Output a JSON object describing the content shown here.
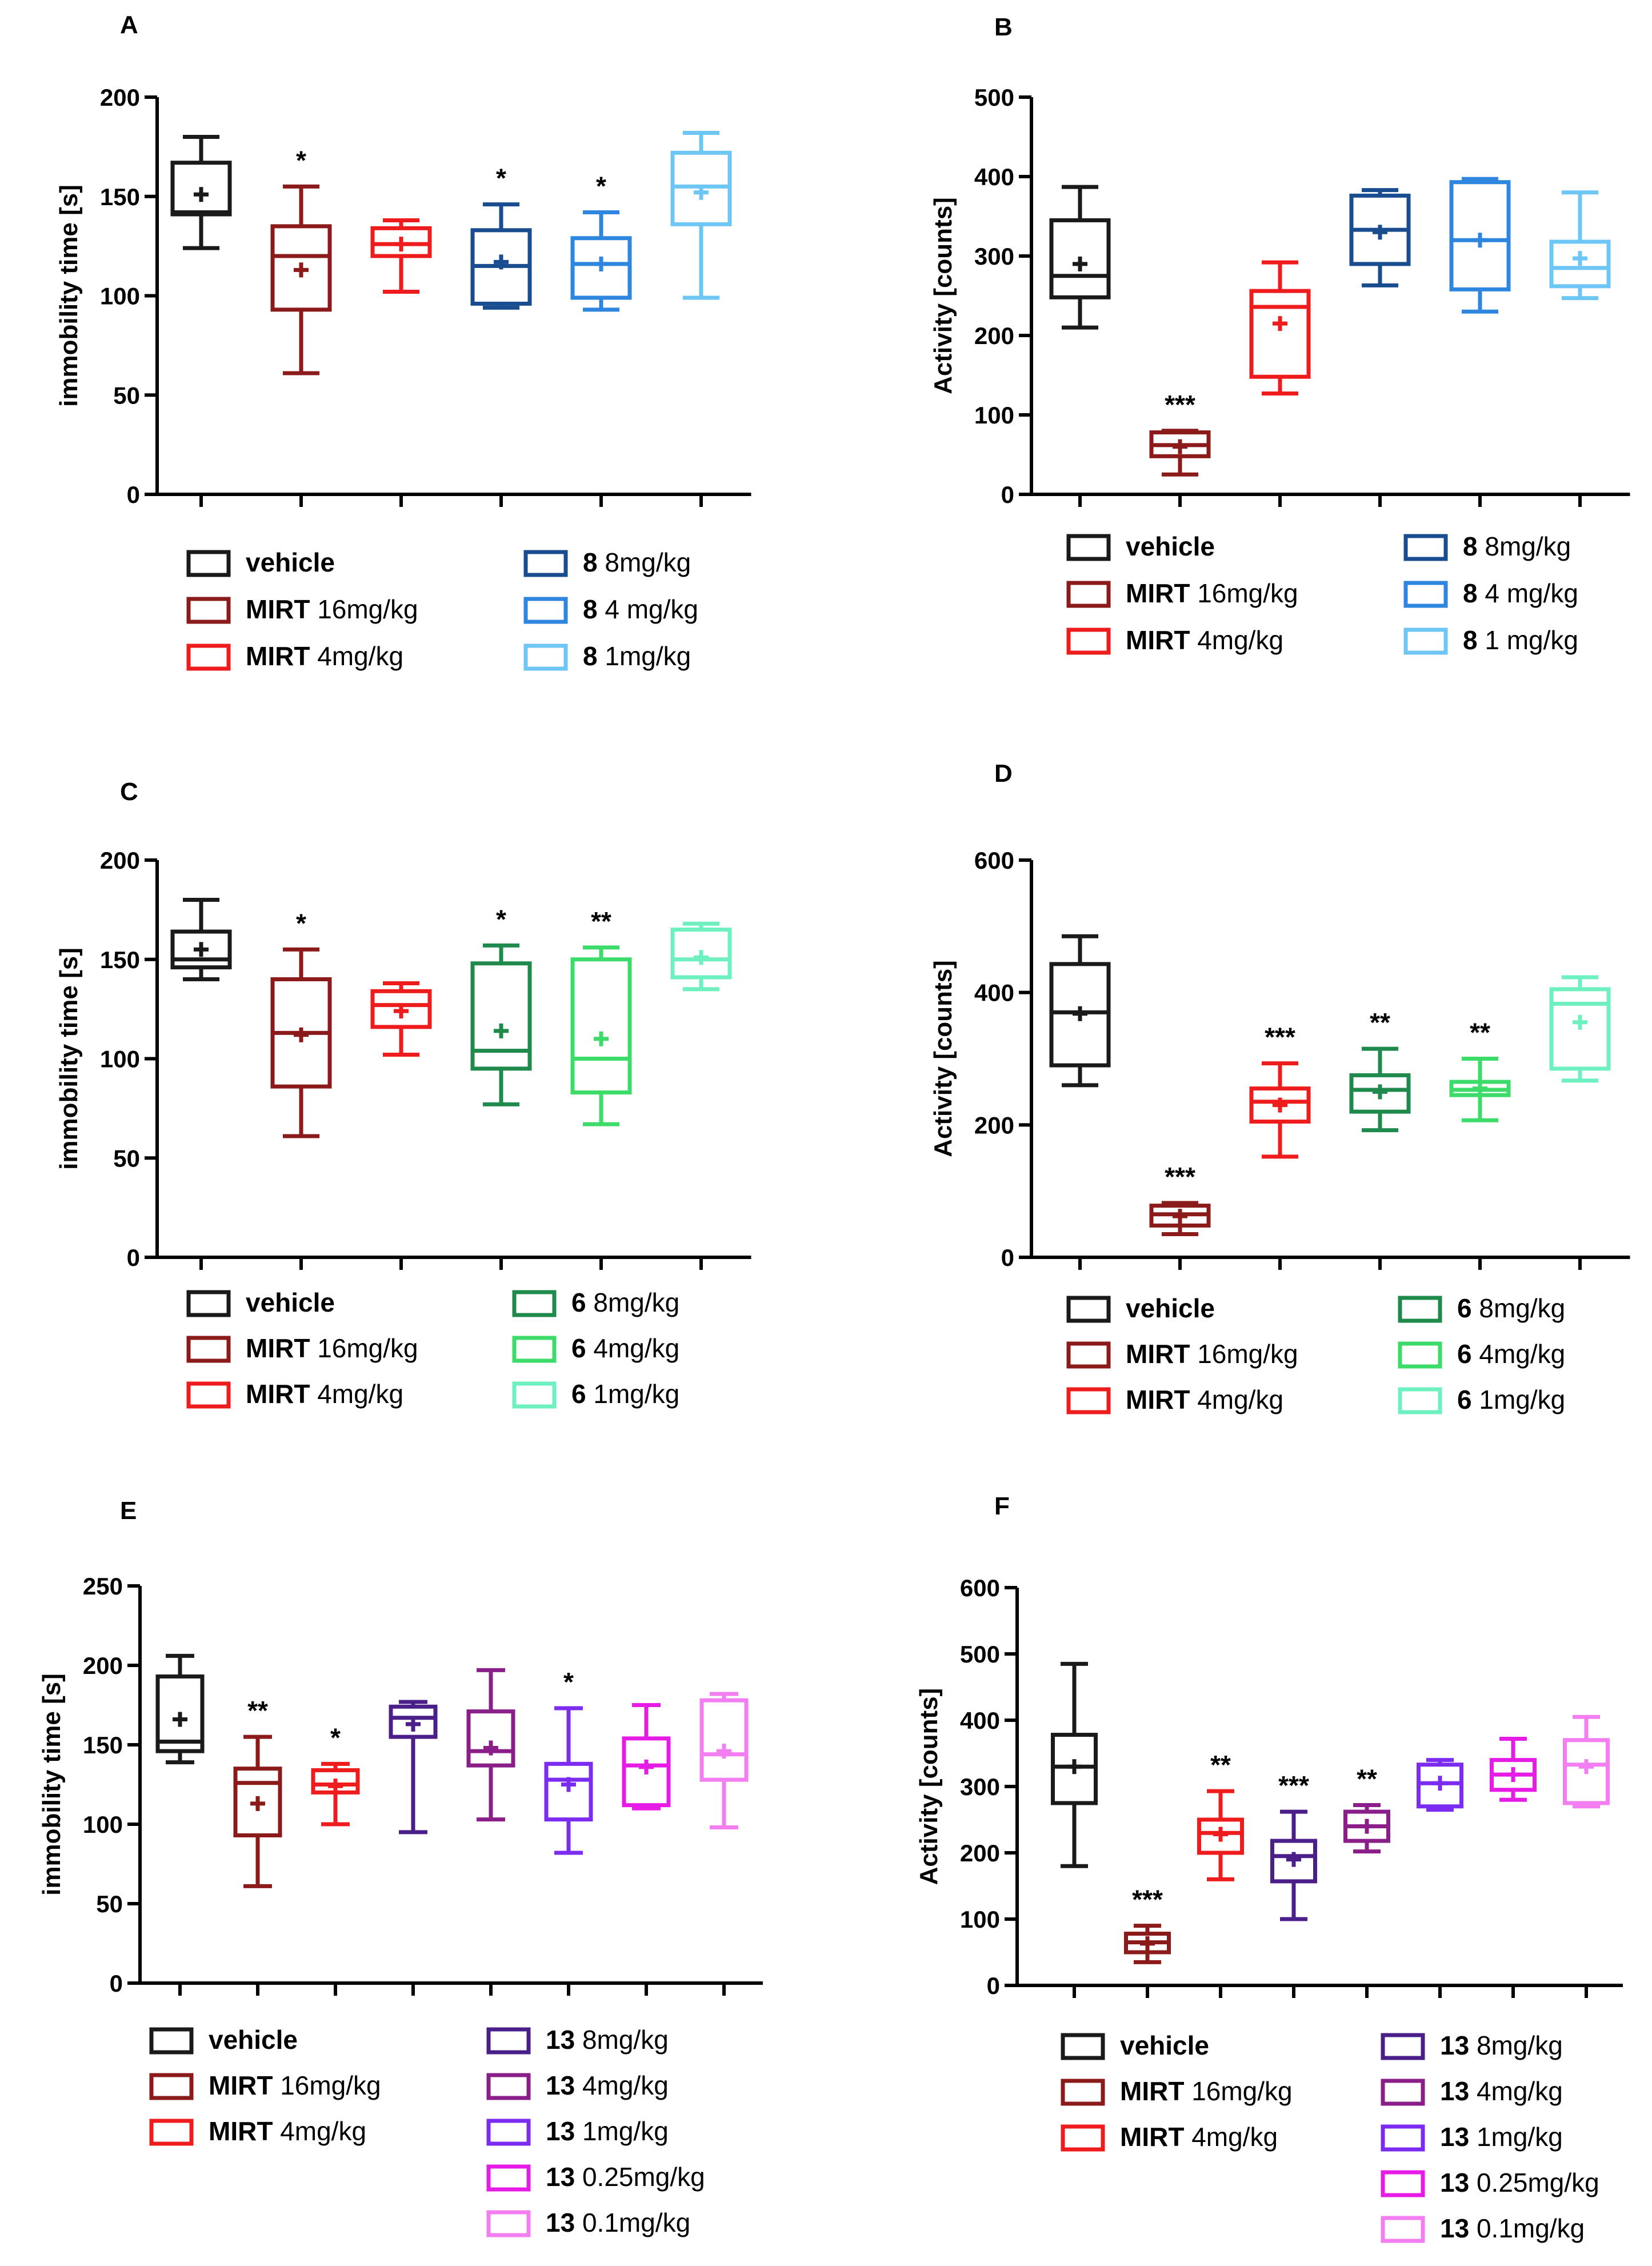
{
  "chart_data": [
    {
      "panel": "A",
      "type": "box",
      "ylabel": "immobility time [s]",
      "ylim": [
        0,
        200
      ],
      "yticks": [
        0,
        50,
        100,
        150,
        200
      ],
      "boxes": [
        {
          "group": "vehicle",
          "color": "#1a1a1a",
          "min": 124,
          "q1": 141,
          "median": 142,
          "q3": 167,
          "max": 180,
          "mean": 151,
          "sig": ""
        },
        {
          "group": "MIRT 16mg/kg",
          "color": "#8b1a1a",
          "min": 61,
          "q1": 93,
          "median": 120,
          "q3": 135,
          "max": 155,
          "mean": 113,
          "sig": "*"
        },
        {
          "group": "MIRT 4mg/kg",
          "color": "#ee1c1c",
          "min": 102,
          "q1": 120,
          "median": 126,
          "q3": 134,
          "max": 138,
          "mean": 126,
          "sig": ""
        },
        {
          "group": "8 8mg/kg",
          "color": "#1a4d8f",
          "min": 94,
          "q1": 96,
          "median": 115,
          "q3": 133,
          "max": 146,
          "mean": 117,
          "sig": "*"
        },
        {
          "group": "8 4 mg/kg",
          "color": "#2e86de",
          "min": 93,
          "q1": 99,
          "median": 116,
          "q3": 129,
          "max": 142,
          "mean": 116,
          "sig": "*"
        },
        {
          "group": "8 1mg/kg",
          "color": "#6ec6f5",
          "min": 99,
          "q1": 136,
          "median": 155,
          "q3": 172,
          "max": 182,
          "mean": 152,
          "sig": ""
        }
      ],
      "legend": [
        {
          "bold": "vehicle",
          "rest": ""
        },
        {
          "bold": "MIRT",
          "rest": "16mg/kg"
        },
        {
          "bold": "MIRT",
          "rest": "4mg/kg"
        },
        {
          "bold": "8",
          "rest": "8mg/kg"
        },
        {
          "bold": "8",
          "rest": "4 mg/kg"
        },
        {
          "bold": "8",
          "rest": "1mg/kg"
        }
      ]
    },
    {
      "panel": "B",
      "type": "box",
      "ylabel": "Activity [counts]",
      "ylim": [
        0,
        500
      ],
      "yticks": [
        0,
        100,
        200,
        300,
        400,
        500
      ],
      "boxes": [
        {
          "group": "vehicle",
          "color": "#1a1a1a",
          "min": 210,
          "q1": 248,
          "median": 275,
          "q3": 345,
          "max": 387,
          "mean": 290,
          "sig": ""
        },
        {
          "group": "MIRT 16mg/kg",
          "color": "#8b1a1a",
          "min": 25,
          "q1": 48,
          "median": 62,
          "q3": 78,
          "max": 80,
          "mean": 60,
          "sig": "***"
        },
        {
          "group": "MIRT 4mg/kg",
          "color": "#ee1c1c",
          "min": 127,
          "q1": 148,
          "median": 236,
          "q3": 256,
          "max": 292,
          "mean": 215,
          "sig": ""
        },
        {
          "group": "8 8mg/kg",
          "color": "#1a4d8f",
          "min": 263,
          "q1": 290,
          "median": 333,
          "q3": 376,
          "max": 383,
          "mean": 330,
          "sig": ""
        },
        {
          "group": "8 4 mg/kg",
          "color": "#2e86de",
          "min": 230,
          "q1": 258,
          "median": 320,
          "q3": 393,
          "max": 397,
          "mean": 320,
          "sig": ""
        },
        {
          "group": "8 1 mg/kg",
          "color": "#6ec6f5",
          "min": 247,
          "q1": 262,
          "median": 285,
          "q3": 318,
          "max": 380,
          "mean": 297,
          "sig": ""
        }
      ],
      "legend": [
        {
          "bold": "vehicle",
          "rest": ""
        },
        {
          "bold": "MIRT",
          "rest": "16mg/kg"
        },
        {
          "bold": "MIRT",
          "rest": "4mg/kg"
        },
        {
          "bold": "8",
          "rest": "8mg/kg"
        },
        {
          "bold": "8",
          "rest": "4 mg/kg"
        },
        {
          "bold": "8",
          "rest": "1 mg/kg"
        }
      ]
    },
    {
      "panel": "C",
      "type": "box",
      "ylabel": "immobility time [s]",
      "ylim": [
        0,
        200
      ],
      "yticks": [
        0,
        50,
        100,
        150,
        200
      ],
      "boxes": [
        {
          "group": "vehicle",
          "color": "#1a1a1a",
          "min": 140,
          "q1": 146,
          "median": 150,
          "q3": 164,
          "max": 180,
          "mean": 155,
          "sig": ""
        },
        {
          "group": "MIRT 16mg/kg",
          "color": "#8b1a1a",
          "min": 61,
          "q1": 86,
          "median": 113,
          "q3": 140,
          "max": 155,
          "mean": 112,
          "sig": "*"
        },
        {
          "group": "MIRT 4mg/kg",
          "color": "#ee1c1c",
          "min": 102,
          "q1": 116,
          "median": 127,
          "q3": 134,
          "max": 138,
          "mean": 124,
          "sig": ""
        },
        {
          "group": "6 8mg/kg",
          "color": "#1f8a4c",
          "min": 77,
          "q1": 95,
          "median": 104,
          "q3": 148,
          "max": 157,
          "mean": 114,
          "sig": "*"
        },
        {
          "group": "6 4mg/kg",
          "color": "#3ddc6a",
          "min": 67,
          "q1": 83,
          "median": 100,
          "q3": 150,
          "max": 156,
          "mean": 110,
          "sig": "**"
        },
        {
          "group": "6 1mg/kg",
          "color": "#6ef0c0",
          "min": 135,
          "q1": 141,
          "median": 150,
          "q3": 165,
          "max": 168,
          "mean": 151,
          "sig": ""
        }
      ],
      "legend": [
        {
          "bold": "vehicle",
          "rest": ""
        },
        {
          "bold": "MIRT",
          "rest": "16mg/kg"
        },
        {
          "bold": "MIRT",
          "rest": "4mg/kg"
        },
        {
          "bold": "6",
          "rest": "8mg/kg"
        },
        {
          "bold": "6",
          "rest": "4mg/kg"
        },
        {
          "bold": "6",
          "rest": "1mg/kg"
        }
      ]
    },
    {
      "panel": "D",
      "type": "box",
      "ylabel": "Activity [counts]",
      "ylim": [
        0,
        600
      ],
      "yticks": [
        0,
        200,
        400,
        600
      ],
      "boxes": [
        {
          "group": "vehicle",
          "color": "#1a1a1a",
          "min": 260,
          "q1": 290,
          "median": 370,
          "q3": 443,
          "max": 485,
          "mean": 368,
          "sig": ""
        },
        {
          "group": "MIRT 16mg/kg",
          "color": "#8b1a1a",
          "min": 35,
          "q1": 48,
          "median": 65,
          "q3": 78,
          "max": 82,
          "mean": 62,
          "sig": "***"
        },
        {
          "group": "MIRT 4mg/kg",
          "color": "#ee1c1c",
          "min": 152,
          "q1": 205,
          "median": 235,
          "q3": 255,
          "max": 293,
          "mean": 230,
          "sig": "***"
        },
        {
          "group": "6 8mg/kg",
          "color": "#1f8a4c",
          "min": 192,
          "q1": 220,
          "median": 253,
          "q3": 275,
          "max": 315,
          "mean": 250,
          "sig": "**"
        },
        {
          "group": "6 4mg/kg",
          "color": "#3ddc6a",
          "min": 207,
          "q1": 245,
          "median": 253,
          "q3": 265,
          "max": 300,
          "mean": 255,
          "sig": "**"
        },
        {
          "group": "6 1mg/kg",
          "color": "#6ef0c0",
          "min": 267,
          "q1": 285,
          "median": 383,
          "q3": 405,
          "max": 423,
          "mean": 355,
          "sig": ""
        }
      ],
      "legend": [
        {
          "bold": "vehicle",
          "rest": ""
        },
        {
          "bold": "MIRT",
          "rest": "16mg/kg"
        },
        {
          "bold": "MIRT",
          "rest": "4mg/kg"
        },
        {
          "bold": "6",
          "rest": "8mg/kg"
        },
        {
          "bold": "6",
          "rest": "4mg/kg"
        },
        {
          "bold": "6",
          "rest": "1mg/kg"
        }
      ]
    },
    {
      "panel": "E",
      "type": "box",
      "ylabel": "immobility time [s]",
      "ylim": [
        0,
        250
      ],
      "yticks": [
        0,
        50,
        100,
        150,
        200,
        250
      ],
      "boxes": [
        {
          "group": "vehicle",
          "color": "#1a1a1a",
          "min": 139,
          "q1": 146,
          "median": 152,
          "q3": 193,
          "max": 206,
          "mean": 166,
          "sig": ""
        },
        {
          "group": "MIRT 16mg/kg",
          "color": "#8b1a1a",
          "min": 61,
          "q1": 93,
          "median": 126,
          "q3": 135,
          "max": 155,
          "mean": 113,
          "sig": "**"
        },
        {
          "group": "MIRT 4mg/kg",
          "color": "#ee1c1c",
          "min": 100,
          "q1": 120,
          "median": 125,
          "q3": 134,
          "max": 138,
          "mean": 124,
          "sig": "*"
        },
        {
          "group": "13 8mg/kg",
          "color": "#4b1f8a",
          "min": 95,
          "q1": 155,
          "median": 167,
          "q3": 174,
          "max": 177,
          "mean": 163,
          "sig": ""
        },
        {
          "group": "13 4mg/kg",
          "color": "#8a1f8a",
          "min": 103,
          "q1": 137,
          "median": 146,
          "q3": 171,
          "max": 197,
          "mean": 148,
          "sig": ""
        },
        {
          "group": "13 1mg/kg",
          "color": "#7b2cf0",
          "min": 82,
          "q1": 103,
          "median": 128,
          "q3": 138,
          "max": 173,
          "mean": 125,
          "sig": "*"
        },
        {
          "group": "13 0.25mg/kg",
          "color": "#e61ce6",
          "min": 110,
          "q1": 112,
          "median": 137,
          "q3": 154,
          "max": 175,
          "mean": 136,
          "sig": ""
        },
        {
          "group": "13 0.1mg/kg",
          "color": "#f27ef2",
          "min": 98,
          "q1": 128,
          "median": 144,
          "q3": 178,
          "max": 182,
          "mean": 146,
          "sig": ""
        }
      ],
      "legend": [
        {
          "bold": "vehicle",
          "rest": ""
        },
        {
          "bold": "MIRT",
          "rest": "16mg/kg"
        },
        {
          "bold": "MIRT",
          "rest": "4mg/kg"
        },
        {
          "bold": "13",
          "rest": "8mg/kg"
        },
        {
          "bold": "13",
          "rest": "4mg/kg"
        },
        {
          "bold": "13",
          "rest": "1mg/kg"
        },
        {
          "bold": "13",
          "rest": "0.25mg/kg"
        },
        {
          "bold": "13",
          "rest": "0.1mg/kg"
        }
      ]
    },
    {
      "panel": "F",
      "type": "box",
      "ylabel": "Activity [counts]",
      "ylim": [
        0,
        600
      ],
      "yticks": [
        0,
        100,
        200,
        300,
        400,
        500,
        600
      ],
      "boxes": [
        {
          "group": "vehicle",
          "color": "#1a1a1a",
          "min": 180,
          "q1": 275,
          "median": 330,
          "q3": 378,
          "max": 485,
          "mean": 330,
          "sig": ""
        },
        {
          "group": "MIRT 16mg/kg",
          "color": "#8b1a1a",
          "min": 35,
          "q1": 50,
          "median": 65,
          "q3": 78,
          "max": 90,
          "mean": 63,
          "sig": "***"
        },
        {
          "group": "MIRT 4mg/kg",
          "color": "#ee1c1c",
          "min": 160,
          "q1": 200,
          "median": 230,
          "q3": 250,
          "max": 293,
          "mean": 228,
          "sig": "**"
        },
        {
          "group": "13 8mg/kg",
          "color": "#4b1f8a",
          "min": 100,
          "q1": 157,
          "median": 195,
          "q3": 218,
          "max": 262,
          "mean": 190,
          "sig": "***"
        },
        {
          "group": "13 4mg/kg",
          "color": "#8a1f8a",
          "min": 202,
          "q1": 218,
          "median": 240,
          "q3": 262,
          "max": 272,
          "mean": 240,
          "sig": "**"
        },
        {
          "group": "13 1mg/kg",
          "color": "#7b2cf0",
          "min": 265,
          "q1": 270,
          "median": 305,
          "q3": 333,
          "max": 340,
          "mean": 305,
          "sig": ""
        },
        {
          "group": "13 0.25mg/kg",
          "color": "#e61ce6",
          "min": 280,
          "q1": 295,
          "median": 318,
          "q3": 340,
          "max": 372,
          "mean": 318,
          "sig": ""
        },
        {
          "group": "13 0.1mg/kg",
          "color": "#f27ef2",
          "min": 270,
          "q1": 275,
          "median": 333,
          "q3": 370,
          "max": 405,
          "mean": 330,
          "sig": ""
        }
      ],
      "legend": [
        {
          "bold": "vehicle",
          "rest": ""
        },
        {
          "bold": "MIRT",
          "rest": "16mg/kg"
        },
        {
          "bold": "MIRT",
          "rest": "4mg/kg"
        },
        {
          "bold": "13",
          "rest": "8mg/kg"
        },
        {
          "bold": "13",
          "rest": "4mg/kg"
        },
        {
          "bold": "13",
          "rest": "1mg/kg"
        },
        {
          "bold": "13",
          "rest": "0.25mg/kg"
        },
        {
          "bold": "13",
          "rest": "0.1mg/kg"
        }
      ]
    }
  ]
}
